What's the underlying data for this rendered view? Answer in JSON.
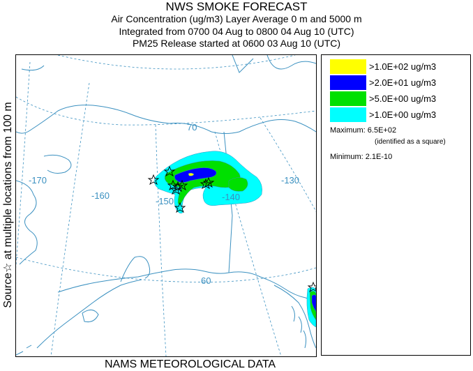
{
  "header": {
    "title": "NWS SMOKE FORECAST",
    "line1": "Air Concentration (ug/m3) Layer Average    0 m and  5000 m",
    "line2": "Integrated from 0700 04 Aug to 0800 04 Aug 10 (UTC)",
    "line3": "PM25 Release started at 0600 03 Aug 10 (UTC)"
  },
  "side_label": "Source☆   at multiple locations   from   100 m",
  "footer": "NAMS METEOROLOGICAL DATA",
  "legend": {
    "items": [
      {
        "label": ">1.0E+02 ug/m3",
        "color": "#ffff00"
      },
      {
        "label": ">2.0E+01 ug/m3",
        "color": "#0000ff"
      },
      {
        "label": ">5.0E+00 ug/m3",
        "color": "#00e000"
      },
      {
        "label": ">1.0E+00 ug/m3",
        "color": "#00ffff"
      }
    ],
    "maximum": "Maximum: 6.5E+02",
    "identified": "(identified as a square)",
    "minimum": "Minimum: 2.1E-10"
  },
  "map": {
    "grid_labels": {
      "lat70": "70",
      "lat60": "60",
      "lon170": "-170",
      "lon160": "-160",
      "lon150": "-150",
      "lon140": "-140",
      "lon130": "-130"
    },
    "colors": {
      "coastline": "#3a90c0",
      "grid": "#3a90c0",
      "source_marker": "#000000"
    }
  }
}
